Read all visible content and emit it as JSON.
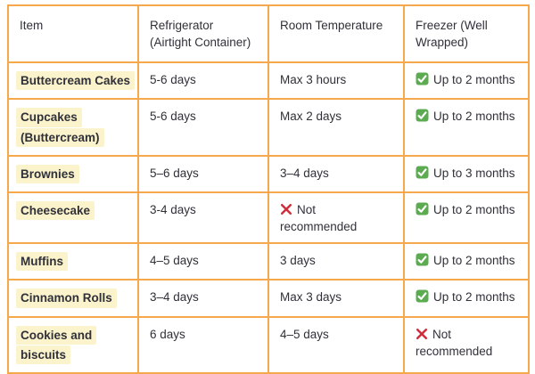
{
  "colors": {
    "border": "#F5A84C",
    "highlight": "#FBF3CB",
    "text": "#303039",
    "check_green": "#5CAB51",
    "cross_red": "#D12E3B"
  },
  "icons": {
    "check": "check-icon",
    "cross": "cross-icon"
  },
  "table": {
    "headers": [
      {
        "lines": [
          "Item"
        ]
      },
      {
        "lines": [
          "Refrigerator",
          "(Airtight Container)"
        ]
      },
      {
        "lines": [
          "Room Temperature"
        ]
      },
      {
        "lines": [
          "Freezer (Well",
          "Wrapped)"
        ]
      }
    ],
    "rows": [
      {
        "item_lines": [
          "Buttercream Cakes"
        ],
        "refrigerator": {
          "text": "5-6 days"
        },
        "room_temperature": {
          "text": "Max 3 hours"
        },
        "freezer": {
          "icon": "check",
          "text": "Up to 2 months"
        }
      },
      {
        "item_lines": [
          "Cupcakes",
          "(Buttercream)"
        ],
        "refrigerator": {
          "text": "5-6 days"
        },
        "room_temperature": {
          "text": "Max 2 days"
        },
        "freezer": {
          "icon": "check",
          "text": "Up to 2 months"
        }
      },
      {
        "item_lines": [
          "Brownies"
        ],
        "refrigerator": {
          "text": "5–6 days"
        },
        "room_temperature": {
          "text": "3–4 days"
        },
        "freezer": {
          "icon": "check",
          "text": "Up to 3 months"
        }
      },
      {
        "item_lines": [
          "Cheesecake"
        ],
        "refrigerator": {
          "text": "3-4 days"
        },
        "room_temperature": {
          "icon": "cross",
          "text": "Not recommended"
        },
        "freezer": {
          "icon": "check",
          "text": "Up to 2 months"
        }
      },
      {
        "item_lines": [
          "Muffins"
        ],
        "refrigerator": {
          "text": "4–5 days"
        },
        "room_temperature": {
          "text": "3 days"
        },
        "freezer": {
          "icon": "check",
          "text": "Up to 2 months"
        }
      },
      {
        "item_lines": [
          "Cinnamon Rolls"
        ],
        "refrigerator": {
          "text": "3–4 days"
        },
        "room_temperature": {
          "text": "Max 3 days"
        },
        "freezer": {
          "icon": "check",
          "text": "Up to 2 months"
        }
      },
      {
        "item_lines": [
          "Cookies and",
          "biscuits"
        ],
        "refrigerator": {
          "text": "6 days"
        },
        "room_temperature": {
          "text": "4–5 days"
        },
        "freezer": {
          "icon": "cross",
          "text": "Not recommended"
        }
      }
    ]
  }
}
